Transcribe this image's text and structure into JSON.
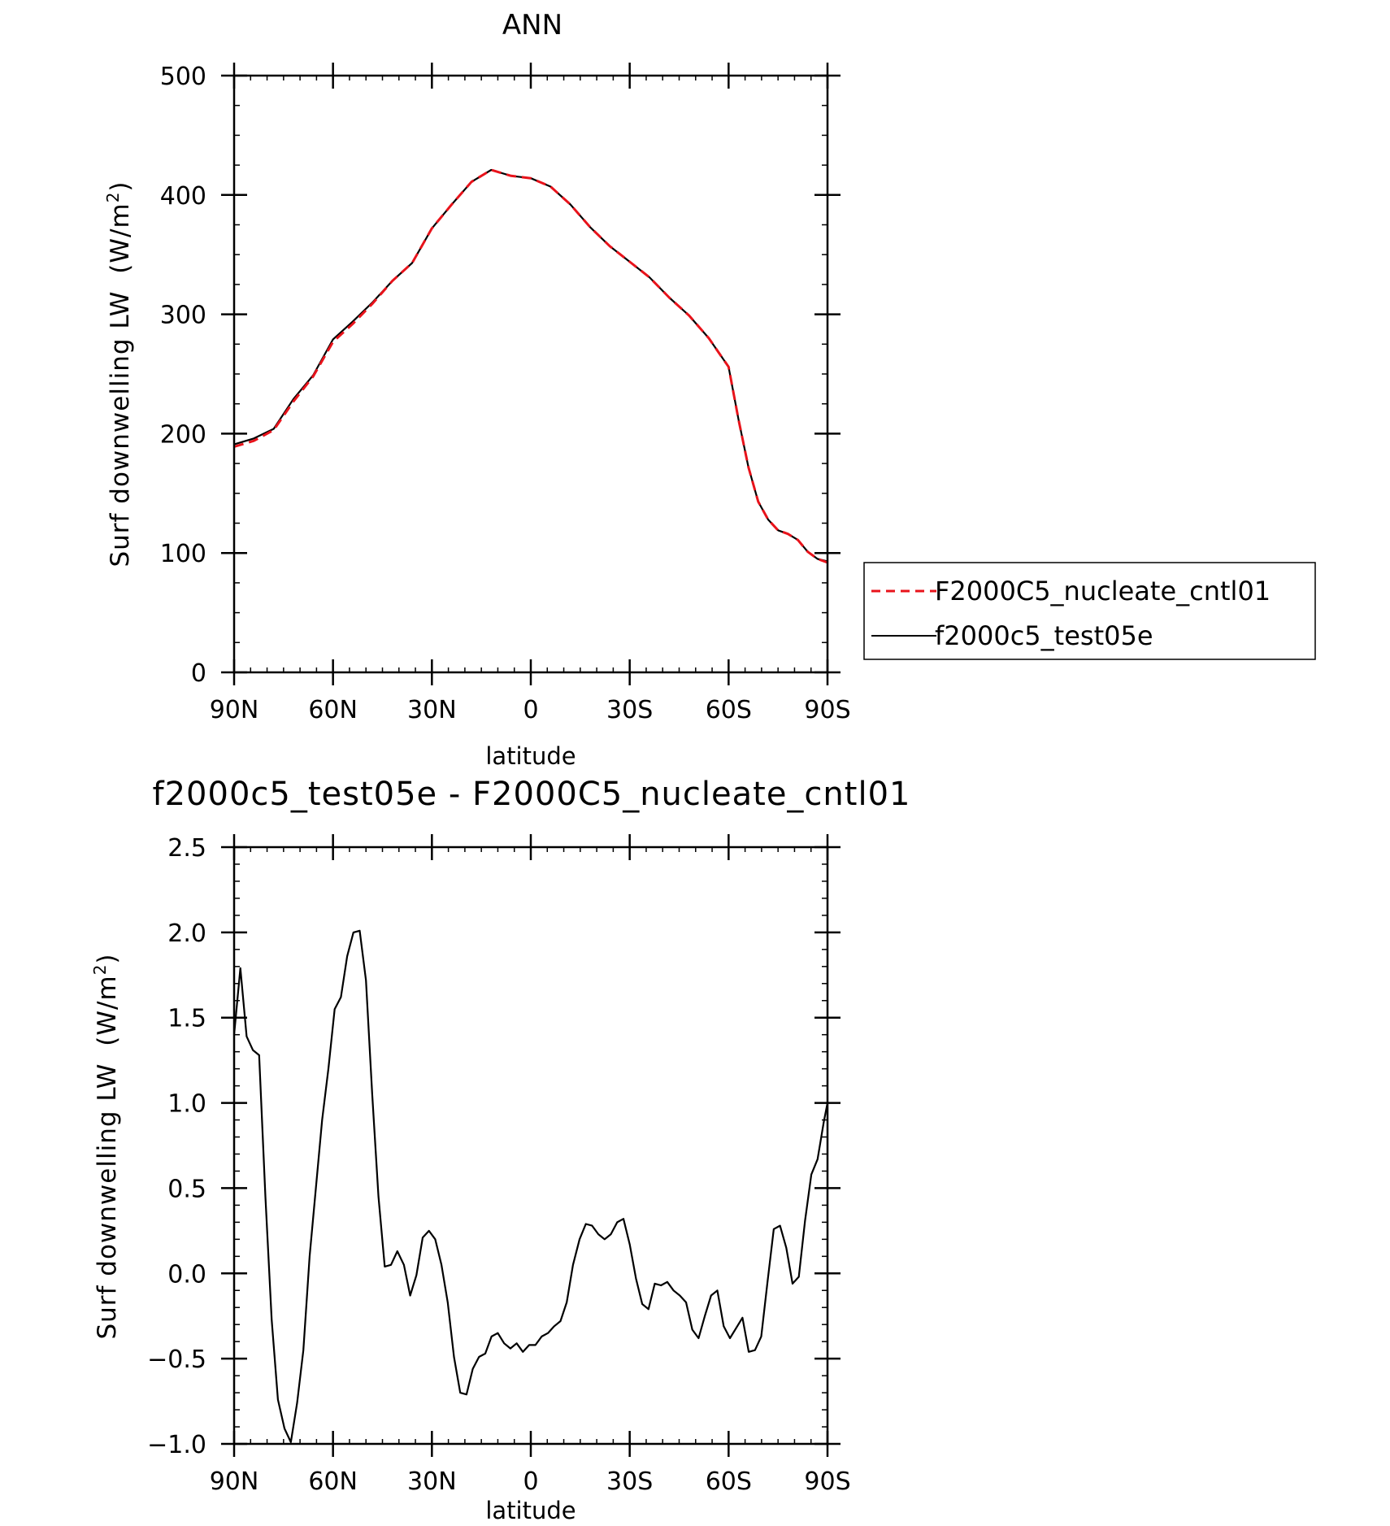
{
  "chart_data": [
    {
      "type": "line",
      "title": "ANN",
      "xlabel": "latitude",
      "ylabel": "Surf downwelling LW",
      "ylabel_unit": "(W/m",
      "ylabel_unit_sup": "2",
      "ylabel_unit_close": ")",
      "xlim": [
        90,
        -90
      ],
      "ylim": [
        0,
        500
      ],
      "x_ticks": [
        {
          "value": 90,
          "label": "90N"
        },
        {
          "value": 60,
          "label": "60N"
        },
        {
          "value": 30,
          "label": "30N"
        },
        {
          "value": 0,
          "label": "0"
        },
        {
          "value": -30,
          "label": "30S"
        },
        {
          "value": -60,
          "label": "60S"
        },
        {
          "value": -90,
          "label": "90S"
        }
      ],
      "y_ticks": [
        {
          "value": 0,
          "label": "0"
        },
        {
          "value": 100,
          "label": "100"
        },
        {
          "value": 200,
          "label": "200"
        },
        {
          "value": 300,
          "label": "300"
        },
        {
          "value": 400,
          "label": "400"
        },
        {
          "value": 500,
          "label": "500"
        }
      ],
      "legend": {
        "placement": "right"
      },
      "series": [
        {
          "name": "F2000C5_nucleate_cntl01",
          "color": "#e8131b",
          "dash": "dashed",
          "x": [
            90,
            84,
            78,
            72,
            66,
            60,
            54,
            48,
            42,
            36,
            30,
            24,
            18,
            12,
            6,
            0,
            -6,
            -12,
            -18,
            -24,
            -30,
            -36,
            -42,
            -48,
            -54,
            -60,
            -63,
            -66,
            -69,
            -72,
            -75,
            -78,
            -81,
            -84,
            -87,
            -90
          ],
          "y": [
            189,
            194,
            203,
            227,
            248,
            277,
            292,
            309,
            328,
            343,
            372,
            392,
            411,
            421,
            416,
            414,
            407,
            392,
            373,
            357,
            344,
            331,
            314,
            299,
            280,
            256,
            212,
            172,
            143,
            128,
            119,
            116,
            111,
            101,
            95,
            92
          ]
        },
        {
          "name": "f2000c5_test05e",
          "color": "#000000",
          "dash": "solid",
          "x": [
            90,
            84,
            78,
            72,
            66,
            60,
            54,
            48,
            42,
            36,
            30,
            24,
            18,
            12,
            6,
            0,
            -6,
            -12,
            -18,
            -24,
            -30,
            -36,
            -42,
            -48,
            -54,
            -60,
            -63,
            -66,
            -69,
            -72,
            -75,
            -78,
            -81,
            -84,
            -87,
            -90
          ],
          "y": [
            191,
            196,
            204,
            229,
            249,
            279,
            294,
            310,
            328,
            343,
            372,
            392,
            411,
            421,
            416,
            414,
            407,
            392,
            373,
            357,
            344,
            331,
            314,
            299,
            280,
            256,
            212,
            172,
            143,
            128,
            119,
            116,
            111,
            101,
            95,
            93
          ]
        }
      ]
    },
    {
      "type": "line",
      "title": "f2000c5_test05e - F2000C5_nucleate_cntl01",
      "xlabel": "latitude",
      "ylabel": "Surf downwelling LW",
      "ylabel_unit": "(W/m",
      "ylabel_unit_sup": "2",
      "ylabel_unit_close": ")",
      "xlim": [
        90,
        -90
      ],
      "ylim": [
        -1.0,
        2.5
      ],
      "x_ticks": [
        {
          "value": 90,
          "label": "90N"
        },
        {
          "value": 60,
          "label": "60N"
        },
        {
          "value": 30,
          "label": "30N"
        },
        {
          "value": 0,
          "label": "0"
        },
        {
          "value": -30,
          "label": "30S"
        },
        {
          "value": -60,
          "label": "60S"
        },
        {
          "value": -90,
          "label": "90S"
        }
      ],
      "y_ticks": [
        {
          "value": -1.0,
          "label": "−1.0"
        },
        {
          "value": -0.5,
          "label": "−0.5"
        },
        {
          "value": 0.0,
          "label": "0.0"
        },
        {
          "value": 0.5,
          "label": "0.5"
        },
        {
          "value": 1.0,
          "label": "1.0"
        },
        {
          "value": 1.5,
          "label": "1.5"
        },
        {
          "value": 2.0,
          "label": "2.0"
        },
        {
          "value": 2.5,
          "label": "2.5"
        }
      ],
      "series": [
        {
          "name": "",
          "color": "#000000",
          "dash": "solid",
          "x": [
            90,
            88.1,
            86.2,
            84.3,
            82.4,
            80.5,
            78.6,
            76.7,
            74.7,
            72.8,
            70.9,
            69.0,
            67.1,
            65.2,
            63.3,
            61.4,
            59.5,
            57.6,
            55.7,
            53.8,
            51.9,
            50.0,
            48.1,
            46.2,
            44.3,
            42.4,
            40.5,
            38.5,
            36.6,
            34.7,
            32.8,
            30.9,
            29.0,
            27.1,
            25.2,
            23.3,
            21.4,
            19.5,
            17.6,
            15.7,
            13.8,
            11.9,
            10.0,
            8.1,
            6.2,
            4.3,
            2.4,
            0.5,
            -1.4,
            -3.3,
            -5.2,
            -7.1,
            -9.0,
            -10.9,
            -12.8,
            -14.8,
            -16.7,
            -18.6,
            -20.5,
            -22.4,
            -24.3,
            -26.2,
            -28.1,
            -30.0,
            -31.9,
            -33.8,
            -35.7,
            -37.6,
            -39.5,
            -41.4,
            -43.3,
            -45.2,
            -47.1,
            -49.0,
            -50.9,
            -52.8,
            -54.7,
            -56.6,
            -58.5,
            -60.4,
            -62.3,
            -64.2,
            -66.1,
            -68.0,
            -69.9,
            -71.8,
            -73.7,
            -75.6,
            -77.5,
            -79.4,
            -81.3,
            -83.2,
            -85.1,
            -87.0,
            -88.9,
            -90
          ],
          "y": [
            1.4,
            1.79,
            1.39,
            1.31,
            1.28,
            0.45,
            -0.27,
            -0.74,
            -0.91,
            -0.99,
            -0.76,
            -0.45,
            0.1,
            0.5,
            0.9,
            1.2,
            1.55,
            1.62,
            1.86,
            2.0,
            2.01,
            1.72,
            1.05,
            0.45,
            0.04,
            0.05,
            0.13,
            0.05,
            -0.13,
            -0.01,
            0.21,
            0.25,
            0.2,
            0.05,
            -0.17,
            -0.49,
            -0.7,
            -0.71,
            -0.56,
            -0.49,
            -0.47,
            -0.37,
            -0.35,
            -0.41,
            -0.44,
            -0.41,
            -0.46,
            -0.42,
            -0.42,
            -0.37,
            -0.35,
            -0.31,
            -0.28,
            -0.17,
            0.05,
            0.2,
            0.29,
            0.28,
            0.23,
            0.2,
            0.23,
            0.3,
            0.32,
            0.17,
            -0.03,
            -0.18,
            -0.21,
            -0.06,
            -0.07,
            -0.05,
            -0.1,
            -0.13,
            -0.17,
            -0.33,
            -0.38,
            -0.25,
            -0.13,
            -0.1,
            -0.31,
            -0.38,
            -0.32,
            -0.26,
            -0.46,
            -0.45,
            -0.37,
            -0.05,
            0.26,
            0.28,
            0.15,
            -0.06,
            -0.02,
            0.31,
            0.58,
            0.67,
            0.89,
            1.0
          ]
        }
      ]
    }
  ]
}
